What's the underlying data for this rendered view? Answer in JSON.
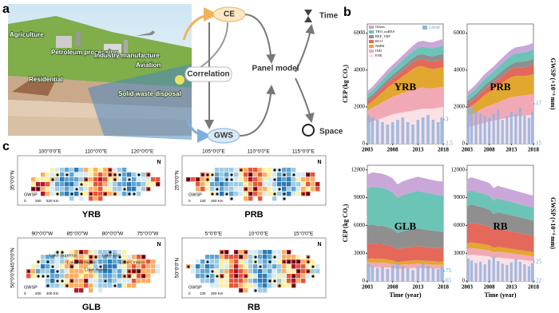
{
  "panel_a": {
    "label": "a",
    "sectors": [
      "Agriculture",
      "Petroleum processing",
      "Industry manufacture",
      "Aviation",
      "Residential",
      "Solid waste disposal"
    ],
    "nodes": {
      "ce": "CE",
      "correlation": "Correlation",
      "panel_model": "Panel model",
      "gws": "GWS",
      "time": "Time",
      "space": "Space"
    }
  },
  "panel_b": {
    "label": "b"
  },
  "chart_data": [
    {
      "type": "area",
      "stacked": true,
      "label": "YRB",
      "ylabel": "CEP (kg CO₂)",
      "x": [
        2003,
        2004,
        2005,
        2006,
        2007,
        2008,
        2009,
        2010,
        2011,
        2012,
        2013,
        2014,
        2015,
        2016,
        2017,
        2018
      ],
      "xlim": [
        2003,
        2018
      ],
      "xticks": [
        2003,
        2008,
        2013,
        2018
      ],
      "ylim": [
        0,
        6500
      ],
      "yticks": [
        0,
        2000,
        4000,
        6000
      ],
      "y2lim": [
        2.5,
        5
      ],
      "y2ticks": [
        2.5,
        3
      ],
      "series": [
        {
          "name": "ENE",
          "color": "#fbe1e5",
          "values": [
            1100,
            1200,
            1300,
            1400,
            1500,
            1600,
            1650,
            1700,
            1750,
            1800,
            1850,
            1900,
            1900,
            1900,
            1950,
            2000
          ]
        },
        {
          "name": "IND",
          "color": "#f2a9b6",
          "values": [
            700,
            750,
            800,
            850,
            900,
            950,
            1000,
            1050,
            1100,
            1150,
            1150,
            1150,
            1100,
            1100,
            1100,
            1100
          ]
        },
        {
          "name": "NMM",
          "color": "#e2a72e",
          "values": [
            300,
            350,
            450,
            550,
            650,
            700,
            800,
            900,
            1000,
            1100,
            1200,
            1150,
            1100,
            1050,
            1050,
            1050
          ]
        },
        {
          "name": "RCO",
          "color": "#e4695b",
          "values": [
            200,
            200,
            220,
            240,
            260,
            280,
            300,
            320,
            340,
            360,
            380,
            400,
            400,
            410,
            420,
            430
          ]
        },
        {
          "name": "REF_TRF",
          "color": "#8f8f8f",
          "values": [
            150,
            160,
            170,
            180,
            190,
            200,
            210,
            220,
            230,
            240,
            250,
            260,
            270,
            280,
            290,
            300
          ]
        },
        {
          "name": "TRO_noRES",
          "color": "#6cc4b6",
          "values": [
            200,
            220,
            240,
            260,
            280,
            300,
            320,
            340,
            360,
            380,
            400,
            420,
            430,
            440,
            450,
            460
          ]
        },
        {
          "name": "Others",
          "color": "#caa7d9",
          "values": [
            200,
            210,
            220,
            230,
            240,
            250,
            260,
            270,
            280,
            290,
            300,
            310,
            320,
            330,
            340,
            350
          ]
        },
        {
          "name": "GWSP",
          "type": "bar",
          "axis": "y2",
          "color": "#8fb3e0",
          "values": [
            3.1,
            3.05,
            3.0,
            2.95,
            2.9,
            2.95,
            3.0,
            3.05,
            2.95,
            2.9,
            3.0,
            3.05,
            3.1,
            3.0,
            2.95,
            3.05
          ]
        }
      ]
    },
    {
      "type": "area",
      "stacked": true,
      "label": "PRB",
      "y2label": "GWSP (×10⁻⁴ mm)",
      "x": [
        2003,
        2004,
        2005,
        2006,
        2007,
        2008,
        2009,
        2010,
        2011,
        2012,
        2013,
        2014,
        2015,
        2016,
        2017,
        2018
      ],
      "xlim": [
        2003,
        2018
      ],
      "xticks": [
        2003,
        2008,
        2013,
        2018
      ],
      "ylim": [
        0,
        6500
      ],
      "yticks": [
        0,
        2000,
        4000,
        6000
      ],
      "y2lim": [
        15,
        21
      ],
      "y2ticks": [
        15,
        17
      ],
      "series": [
        {
          "color": "#fbe1e5",
          "values": [
            900,
            950,
            1000,
            1080,
            1150,
            1200,
            1250,
            1300,
            1350,
            1400,
            1450,
            1480,
            1500,
            1520,
            1550,
            1600
          ]
        },
        {
          "color": "#f2a9b6",
          "values": [
            600,
            650,
            700,
            760,
            820,
            860,
            900,
            950,
            1000,
            1050,
            1080,
            1100,
            1100,
            1100,
            1110,
            1120
          ]
        },
        {
          "color": "#e2a72e",
          "values": [
            400,
            450,
            520,
            600,
            680,
            740,
            800,
            880,
            950,
            1020,
            1080,
            1100,
            1080,
            1060,
            1050,
            1060
          ]
        },
        {
          "color": "#e4695b",
          "values": [
            250,
            260,
            280,
            300,
            320,
            340,
            360,
            380,
            400,
            420,
            440,
            460,
            470,
            480,
            490,
            500
          ]
        },
        {
          "color": "#8f8f8f",
          "values": [
            180,
            190,
            200,
            210,
            220,
            230,
            240,
            250,
            260,
            270,
            280,
            290,
            300,
            310,
            320,
            330
          ]
        },
        {
          "color": "#6cc4b6",
          "values": [
            250,
            270,
            290,
            310,
            330,
            350,
            370,
            390,
            410,
            430,
            450,
            470,
            480,
            490,
            500,
            510
          ]
        },
        {
          "color": "#caa7d9",
          "values": [
            220,
            230,
            240,
            250,
            260,
            270,
            280,
            290,
            300,
            310,
            320,
            330,
            340,
            350,
            360,
            370
          ]
        },
        {
          "type": "bar",
          "axis": "y2",
          "color": "#8fb3e0",
          "values": [
            16.8,
            16.9,
            16.6,
            16.5,
            16.4,
            16.3,
            16.5,
            16.7,
            16.2,
            16.4,
            16.6,
            16.5,
            16.8,
            16.4,
            16.3,
            16.6
          ]
        }
      ]
    },
    {
      "type": "area",
      "stacked": true,
      "label": "GLB",
      "ylabel": "CEP (kg CO₂)",
      "xlabel": "Time (year)",
      "x": [
        2003,
        2004,
        2005,
        2006,
        2007,
        2008,
        2009,
        2010,
        2011,
        2012,
        2013,
        2014,
        2015,
        2016,
        2017,
        2018
      ],
      "xlim": [
        2003,
        2018
      ],
      "xticks": [
        2003,
        2008,
        2013,
        2018
      ],
      "ylim": [
        0,
        12500
      ],
      "yticks": [
        0,
        3000,
        6000,
        9000,
        12000
      ],
      "y2lim": [
        65,
        180
      ],
      "y2ticks": [
        65,
        75
      ],
      "series": [
        {
          "color": "#fbe1e5",
          "values": [
            1500,
            1520,
            1480,
            1500,
            1450,
            1400,
            1300,
            1350,
            1380,
            1400,
            1420,
            1400,
            1380,
            1360,
            1350,
            1340
          ]
        },
        {
          "color": "#f2a9b6",
          "values": [
            500,
            510,
            490,
            500,
            480,
            450,
            400,
            420,
            430,
            440,
            450,
            440,
            430,
            420,
            410,
            400
          ]
        },
        {
          "color": "#e2a72e",
          "values": [
            400,
            410,
            420,
            410,
            400,
            380,
            340,
            360,
            370,
            380,
            390,
            380,
            370,
            360,
            350,
            350
          ]
        },
        {
          "color": "#e4695b",
          "values": [
            1600,
            1620,
            1580,
            1560,
            1540,
            1500,
            1400,
            1450,
            1480,
            1500,
            1520,
            1500,
            1480,
            1470,
            1460,
            1450
          ]
        },
        {
          "color": "#8f8f8f",
          "values": [
            2000,
            2050,
            2000,
            1980,
            1950,
            1900,
            1750,
            1800,
            1850,
            1880,
            1900,
            1880,
            1850,
            1830,
            1820,
            1800
          ]
        },
        {
          "color": "#6cc4b6",
          "values": [
            4000,
            4100,
            4150,
            4100,
            4050,
            3950,
            3800,
            3900,
            3950,
            4000,
            4050,
            4000,
            3980,
            3950,
            3900,
            3900
          ]
        },
        {
          "color": "#caa7d9",
          "values": [
            1500,
            1520,
            1550,
            1530,
            1520,
            1500,
            1450,
            1480,
            1500,
            1520,
            1540,
            1530,
            1520,
            1510,
            1500,
            1500
          ]
        },
        {
          "type": "bar",
          "axis": "y2",
          "color": "#8fb3e0",
          "values": [
            82,
            80,
            78,
            79,
            77,
            81,
            83,
            80,
            78,
            76,
            79,
            82,
            80,
            78,
            77,
            79
          ]
        }
      ]
    },
    {
      "type": "area",
      "stacked": true,
      "label": "RB",
      "y2label": "GWSP (×10⁻⁴ mm)",
      "xlabel": "Time (year)",
      "x": [
        2003,
        2004,
        2005,
        2006,
        2007,
        2008,
        2009,
        2010,
        2011,
        2012,
        2013,
        2014,
        2015,
        2016,
        2017,
        2018
      ],
      "xlim": [
        2003,
        2018
      ],
      "xticks": [
        2003,
        2008,
        2013,
        2018
      ],
      "ylim": [
        0,
        12500
      ],
      "yticks": [
        0,
        3000,
        6000,
        9000,
        12000
      ],
      "y2lim": [
        22,
        40
      ],
      "y2ticks": [
        22,
        25
      ],
      "series": [
        {
          "color": "#fbe1e5",
          "values": [
            2800,
            2850,
            2800,
            2750,
            2700,
            2650,
            2500,
            2550,
            2500,
            2450,
            2400,
            2350,
            2300,
            2250,
            2200,
            2150
          ]
        },
        {
          "color": "#f2a9b6",
          "values": [
            700,
            710,
            700,
            690,
            680,
            660,
            600,
            620,
            610,
            600,
            590,
            580,
            570,
            560,
            550,
            540
          ]
        },
        {
          "color": "#e2a72e",
          "values": [
            600,
            610,
            600,
            590,
            580,
            560,
            500,
            520,
            510,
            500,
            490,
            480,
            470,
            460,
            450,
            440
          ]
        },
        {
          "color": "#e4695b",
          "values": [
            2100,
            2150,
            2100,
            2080,
            2050,
            2000,
            1900,
            1950,
            1920,
            1900,
            1880,
            1850,
            1820,
            1800,
            1780,
            1760
          ]
        },
        {
          "color": "#8f8f8f",
          "values": [
            1900,
            1950,
            1920,
            1900,
            1880,
            1850,
            1750,
            1800,
            1780,
            1760,
            1740,
            1720,
            1700,
            1680,
            1660,
            1640
          ]
        },
        {
          "color": "#6cc4b6",
          "values": [
            1500,
            1520,
            1510,
            1500,
            1490,
            1480,
            1450,
            1470,
            1460,
            1450,
            1440,
            1430,
            1420,
            1410,
            1400,
            1390
          ]
        },
        {
          "color": "#caa7d9",
          "values": [
            1400,
            1420,
            1410,
            1400,
            1390,
            1380,
            1350,
            1370,
            1360,
            1350,
            1340,
            1330,
            1320,
            1310,
            1300,
            1290
          ]
        },
        {
          "type": "bar",
          "axis": "y2",
          "color": "#8fb3e0",
          "values": [
            25.5,
            25.2,
            24.8,
            25,
            24.6,
            25.3,
            25.8,
            25.1,
            24.7,
            24.5,
            24.9,
            25.4,
            25,
            24.6,
            24.3,
            24.8
          ]
        }
      ]
    }
  ],
  "panel_c": {
    "label": "c",
    "maps": [
      {
        "name": "YRB",
        "lon_ticks": [
          "100°0'0\"E",
          "110°0'0\"E",
          "120°0'0\"E"
        ],
        "lat_ticks": [
          "35°0'0\"N"
        ],
        "scale": [
          "0",
          "260",
          "520 Km"
        ],
        "legend": "GWSP",
        "north": "N"
      },
      {
        "name": "PRB",
        "lon_ticks": [
          "105°0'0\"E",
          "110°0'0\"E",
          "115°0'0\"E"
        ],
        "lat_ticks": [
          "25°0'0\"N"
        ],
        "scale": [
          "0",
          "130",
          "260 Km"
        ],
        "legend": "GWSP",
        "north": "N"
      },
      {
        "name": "GLB",
        "lon_ticks": [
          "90°0'0\"W",
          "85°0'0\"W",
          "80°0'0\"W",
          "75°0'0\"W"
        ],
        "lat_ticks": [
          "45°0'0\"N",
          "50°0'0\"N"
        ],
        "scale": [
          "0",
          "200",
          "400 Km"
        ],
        "legend": "GWSP",
        "north": "N",
        "lakes": [
          "Lake Superior",
          "Lake Michigan",
          "Lake Huron",
          "Lake Erie",
          "Lake Ontario"
        ]
      },
      {
        "name": "RB",
        "lon_ticks": [
          "5°0'0\"E",
          "10°0'0\"E",
          "15°0'0\"E"
        ],
        "lat_ticks": [
          "50°0'0\"N"
        ],
        "scale": [
          "0",
          "130",
          "260 Km"
        ],
        "legend": "GWSP",
        "north": "N"
      }
    ]
  }
}
